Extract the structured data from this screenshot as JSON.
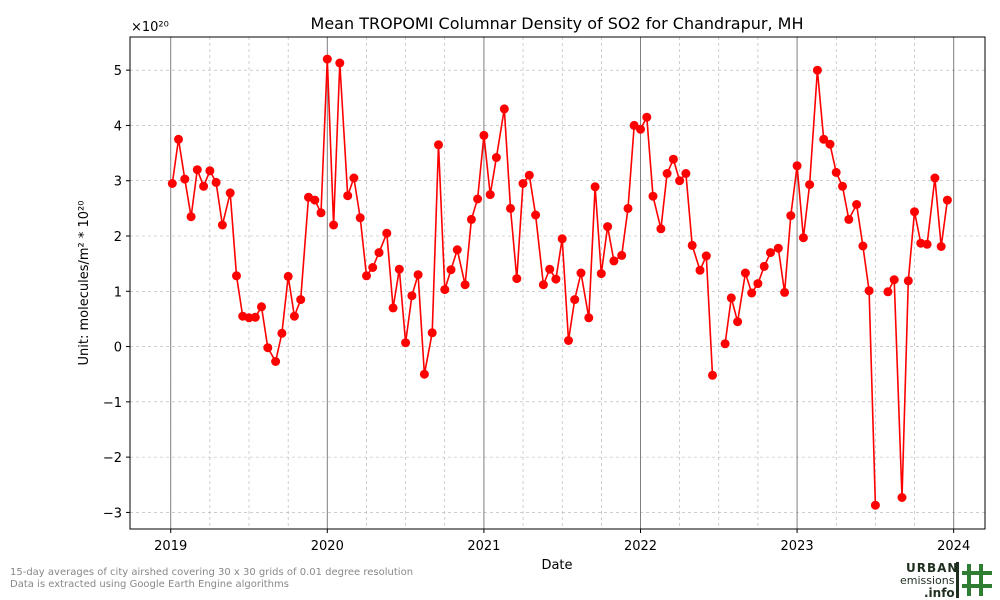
{
  "chart_data": {
    "type": "line",
    "title": "Mean TROPOMI Columnar Density of SO2 for Chandrapur, MH",
    "xlabel": "Date",
    "ylabel": "Unit: molecules/m² * 10²⁰",
    "y_multiplier": "×10²⁰",
    "xlim": [
      2018.74,
      2024.2
    ],
    "ylim": [
      -3.3,
      5.6
    ],
    "x_ticks": [
      2019,
      2020,
      2021,
      2022,
      2023,
      2024
    ],
    "x_tick_labels": [
      "2019",
      "2020",
      "2021",
      "2022",
      "2023",
      "2024"
    ],
    "y_ticks": [
      -3,
      -2,
      -1,
      0,
      1,
      2,
      3,
      4,
      5
    ],
    "y_tick_labels": [
      "−3",
      "−2",
      "−1",
      "0",
      "1",
      "2",
      "3",
      "4",
      "5"
    ],
    "grid": true,
    "year_vlines": [
      2019,
      2020,
      2021,
      2022,
      2023,
      2024
    ],
    "series": [
      {
        "color": "#ff0000",
        "segments": [
          {
            "x": [
              2019.01,
              2019.05,
              2019.09,
              2019.13,
              2019.17,
              2019.21,
              2019.25,
              2019.29,
              2019.33,
              2019.38,
              2019.42,
              2019.46,
              2019.5,
              2019.54,
              2019.58,
              2019.62,
              2019.67,
              2019.71,
              2019.75,
              2019.79,
              2019.83,
              2019.88,
              2019.92,
              2019.96,
              2020.0,
              2020.04,
              2020.08,
              2020.13,
              2020.17,
              2020.21,
              2020.25,
              2020.29,
              2020.33,
              2020.38,
              2020.42,
              2020.46,
              2020.5,
              2020.54,
              2020.58,
              2020.62,
              2020.67,
              2020.71,
              2020.75,
              2020.79,
              2020.83,
              2020.88,
              2020.92,
              2020.96,
              2021.0,
              2021.04,
              2021.08,
              2021.13,
              2021.17,
              2021.21,
              2021.25,
              2021.29,
              2021.33,
              2021.38,
              2021.42,
              2021.46,
              2021.5,
              2021.54,
              2021.58,
              2021.62,
              2021.67,
              2021.71,
              2021.75,
              2021.79,
              2021.83,
              2021.88,
              2021.92,
              2021.96,
              2022.0,
              2022.04,
              2022.08,
              2022.13,
              2022.17,
              2022.21,
              2022.25,
              2022.29,
              2022.33,
              2022.38,
              2022.42,
              2022.46
            ],
            "y": [
              2.95,
              3.75,
              3.03,
              2.35,
              3.2,
              2.9,
              3.18,
              2.97,
              2.2,
              2.78,
              1.28,
              0.55,
              0.52,
              0.53,
              0.72,
              -0.02,
              -0.27,
              0.24,
              1.27,
              0.55,
              0.85,
              2.7,
              2.65,
              2.42,
              5.2,
              2.2,
              5.13,
              2.73,
              3.05,
              2.33,
              1.28,
              1.43,
              1.7,
              2.05,
              0.7,
              1.4,
              0.07,
              0.92,
              1.3,
              -0.5,
              0.25,
              3.65,
              1.03,
              1.39,
              1.75,
              1.12,
              2.3,
              2.67,
              3.82,
              2.75,
              3.42,
              4.3,
              2.5,
              1.23,
              2.95,
              3.1,
              2.38,
              1.12,
              1.4,
              1.22,
              1.95,
              0.11,
              0.85,
              1.33,
              0.52,
              2.89,
              1.32,
              2.17,
              1.55,
              1.65,
              2.5,
              4.0,
              3.93,
              4.15,
              2.72,
              2.13,
              3.13,
              3.39,
              3.0,
              3.13,
              1.83,
              1.38,
              1.64,
              -0.52
            ]
          },
          {
            "x": [
              2022.54,
              2022.58,
              2022.62,
              2022.67,
              2022.71,
              2022.75,
              2022.79,
              2022.83,
              2022.88,
              2022.92,
              2022.96,
              2023.0,
              2023.04,
              2023.08,
              2023.13,
              2023.17,
              2023.21,
              2023.25,
              2023.29,
              2023.33,
              2023.38,
              2023.42,
              2023.46,
              2023.5
            ],
            "y": [
              0.05,
              0.88,
              0.45,
              1.33,
              0.97,
              1.14,
              1.45,
              1.7,
              1.78,
              0.98,
              2.37,
              3.27,
              1.97,
              2.93,
              5.0,
              3.75,
              3.66,
              3.15,
              2.9,
              2.3,
              2.57,
              1.82,
              1.01,
              -2.87
            ]
          },
          {
            "x": [
              2023.58,
              2023.62,
              2023.67,
              2023.71,
              2023.75,
              2023.79,
              2023.83,
              2023.88,
              2023.92,
              2023.96
            ],
            "y": [
              0.99,
              1.21,
              -2.73,
              1.19,
              2.44,
              1.87,
              1.85,
              3.05,
              1.81,
              2.65
            ]
          }
        ]
      }
    ]
  },
  "footnote": {
    "line1": "15-day averages of city airshed covering 30 x 30 grids of 0.01 degree resolution",
    "line2": "Data is extracted using Google Earth Engine algorithms"
  },
  "logo": {
    "word1": "URBAN",
    "word2": "emissions",
    "word3": ".info",
    "color": "#2e7d32"
  }
}
